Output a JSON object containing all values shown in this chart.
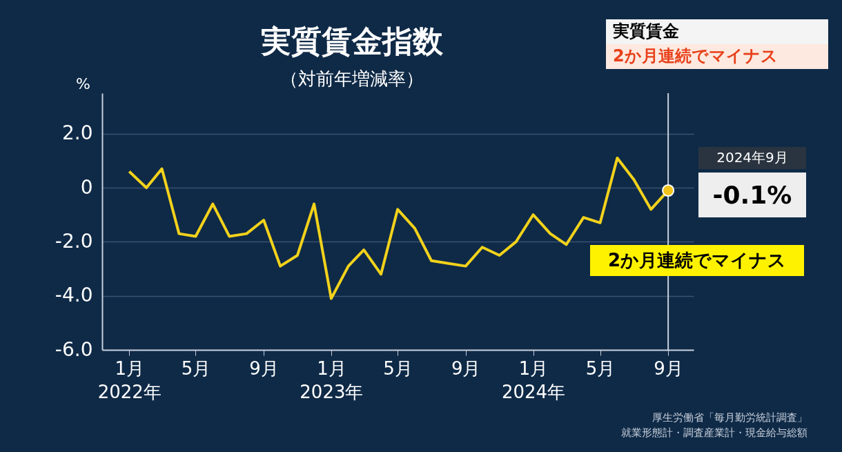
{
  "chart_data": {
    "type": "line",
    "title": "実質賃金指数",
    "subtitle": "（対前年増減率）",
    "ylabel": "%",
    "x": [
      "2022-01",
      "2022-02",
      "2022-03",
      "2022-04",
      "2022-05",
      "2022-06",
      "2022-07",
      "2022-08",
      "2022-09",
      "2022-10",
      "2022-11",
      "2022-12",
      "2023-01",
      "2023-02",
      "2023-03",
      "2023-04",
      "2023-05",
      "2023-06",
      "2023-07",
      "2023-08",
      "2023-09",
      "2023-10",
      "2023-11",
      "2023-12",
      "2024-01",
      "2024-02",
      "2024-03",
      "2024-04",
      "2024-05",
      "2024-06",
      "2024-07",
      "2024-08",
      "2024-09"
    ],
    "series": [
      {
        "color": "#f2d21b",
        "values": [
          0.6,
          0.0,
          0.7,
          -1.7,
          -1.8,
          -0.6,
          -1.8,
          -1.7,
          -1.2,
          -2.9,
          -2.5,
          -0.6,
          -4.1,
          -2.9,
          -2.3,
          -3.2,
          -0.8,
          -1.5,
          -2.7,
          -2.8,
          -2.9,
          -2.2,
          -2.5,
          -2.0,
          -1.0,
          -1.7,
          -2.1,
          -1.1,
          -1.3,
          1.1,
          0.3,
          -0.8,
          -0.1
        ]
      }
    ],
    "xlim": [
      "2021-11-13",
      "2024-10-17"
    ],
    "xticks": [
      {
        "value": "2022-01",
        "label": "1月\n2022年"
      },
      {
        "value": "2022-05",
        "label": "5月"
      },
      {
        "value": "2022-09",
        "label": "9月"
      },
      {
        "value": "2023-01",
        "label": "1月\n2023年"
      },
      {
        "value": "2023-05",
        "label": "5月"
      },
      {
        "value": "2023-09",
        "label": "9月"
      },
      {
        "value": "2024-01",
        "label": "1月\n2024年"
      },
      {
        "value": "2024-05",
        "label": "5月"
      },
      {
        "value": "2024-09",
        "label": "9月"
      }
    ],
    "ylim": [
      -6,
      3.5
    ],
    "yticks": [
      {
        "value": -6,
        "label": "-6.0"
      },
      {
        "value": -4,
        "label": "-4.0"
      },
      {
        "value": -2,
        "label": "-2.0"
      },
      {
        "value": 0,
        "label": "0"
      },
      {
        "value": 2,
        "label": "2.0"
      }
    ],
    "ref_lines": [
      {
        "axis": "x",
        "value": "2024-09",
        "color": "#c8d0dc"
      }
    ],
    "annotations": [
      "2024年9月",
      "-0.1%",
      "2か月連続でマイナス",
      "実質賃金",
      "2か月連続でマイナス",
      "厚生労働省「毎月勤労統計調査」",
      "就業形態計・調査産業計・現金給与総額"
    ],
    "grid": "y",
    "marker": "none",
    "line_style": "solid"
  }
}
